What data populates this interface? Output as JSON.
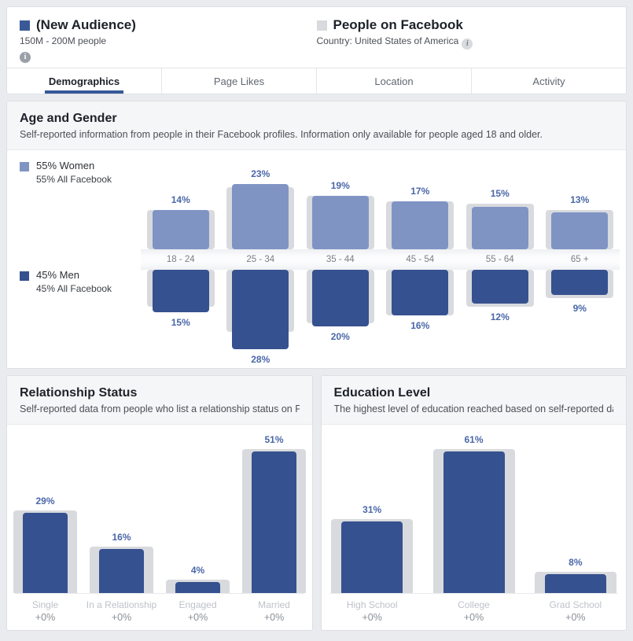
{
  "header": {
    "audience": {
      "label": "(New Audience)",
      "size": "150M - 200M people",
      "swatch_color": "#3b5998",
      "info_icon": "i"
    },
    "comparison": {
      "label": "People on Facebook",
      "detail": "Country: United States of America",
      "swatch_color": "#d8dade",
      "info_icon": "i"
    }
  },
  "tabs": [
    {
      "label": "Demographics",
      "active": true
    },
    {
      "label": "Page Likes",
      "active": false
    },
    {
      "label": "Location",
      "active": false
    },
    {
      "label": "Activity",
      "active": false
    }
  ],
  "age_gender": {
    "title": "Age and Gender",
    "description": "Self-reported information from people in their Facebook profiles. Information only available for people aged 18 and older.",
    "legend": {
      "women": {
        "label": "55% Women",
        "sub": "55% All Facebook",
        "color": "#8094c4"
      },
      "men": {
        "label": "45% Men",
        "sub": "45% All Facebook",
        "color": "#36518f"
      }
    }
  },
  "relationship": {
    "title": "Relationship Status",
    "description": "Self-reported data from people who list a relationship status on Fa…"
  },
  "education": {
    "title": "Education Level",
    "description": "The highest level of education reached based on self-reported dat…"
  },
  "colors": {
    "accent_navy": "#365899",
    "bar_men": "#36518f",
    "bar_women": "#8094c4",
    "bar_comparison_gray": "#d8dade",
    "value_label_blue": "#4a67a8",
    "page_background": "#e9ebee"
  },
  "chart_data": [
    {
      "id": "age_gender",
      "type": "bar",
      "title": "Age and Gender",
      "layout": "mirrored-horizontal-axis",
      "categories": [
        "18 - 24",
        "25 - 34",
        "35 - 44",
        "45 - 54",
        "55 - 64",
        "65 +"
      ],
      "series": [
        {
          "name": "Women",
          "values": [
            14,
            23,
            19,
            17,
            15,
            13
          ],
          "color": "#8094c4"
        },
        {
          "name": "Women All Facebook",
          "values": [
            14,
            22,
            19,
            17,
            16,
            14
          ],
          "color": "#d8dade"
        },
        {
          "name": "Men",
          "values": [
            15,
            28,
            20,
            16,
            12,
            9
          ],
          "color": "#36518f"
        },
        {
          "name": "Men All Facebook",
          "values": [
            13,
            22,
            19,
            16,
            13,
            10
          ],
          "color": "#d8dade"
        }
      ],
      "value_suffix": "%",
      "legend_position": "left",
      "grid": false
    },
    {
      "id": "relationship",
      "type": "bar",
      "title": "Relationship Status",
      "categories": [
        "Single",
        "In a Relationship",
        "Engaged",
        "Married"
      ],
      "values": [
        29,
        16,
        4,
        51
      ],
      "comparison_values": [
        29,
        16,
        4,
        51
      ],
      "deltas": [
        "+0%",
        "+0%",
        "+0%",
        "+0%"
      ],
      "value_suffix": "%",
      "grid": false
    },
    {
      "id": "education",
      "type": "bar",
      "title": "Education Level",
      "categories": [
        "High School",
        "College",
        "Grad School"
      ],
      "values": [
        31,
        61,
        8
      ],
      "comparison_values": [
        31,
        61,
        8
      ],
      "deltas": [
        "+0%",
        "+0%",
        "+0%"
      ],
      "value_suffix": "%",
      "grid": false
    }
  ]
}
